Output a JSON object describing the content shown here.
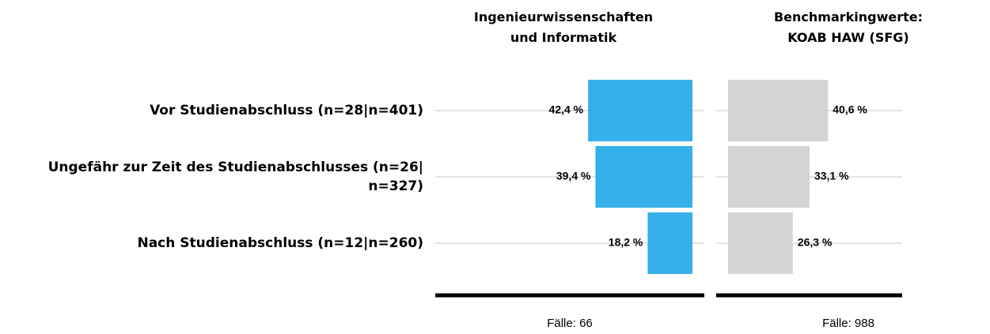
{
  "chart_data": {
    "type": "bar",
    "categories": [
      "Vor Studienabschluss (n=28|n=401)",
      "Ungefähr zur Zeit des Studienabschlusses (n=26|\nn=327)",
      "Nach Studienabschluss (n=12|n=260)"
    ],
    "series": [
      {
        "name": "Ingenieurwissenschaften\nund Informatik",
        "color": "#35b0e8",
        "direction": "left",
        "values": [
          42.4,
          39.4,
          18.2
        ],
        "value_labels": [
          "42,4 %",
          "39,4 %",
          "18,2 %"
        ],
        "footer": "Fälle: 66"
      },
      {
        "name": "Benchmarkingwerte:\nKOAB HAW (SFG)",
        "color": "#d4d4d4",
        "direction": "right",
        "values": [
          40.6,
          33.1,
          26.3
        ],
        "value_labels": [
          "40,6 %",
          "33,1 %",
          "26,3 %"
        ],
        "footer": "Fälle: 988"
      }
    ]
  }
}
